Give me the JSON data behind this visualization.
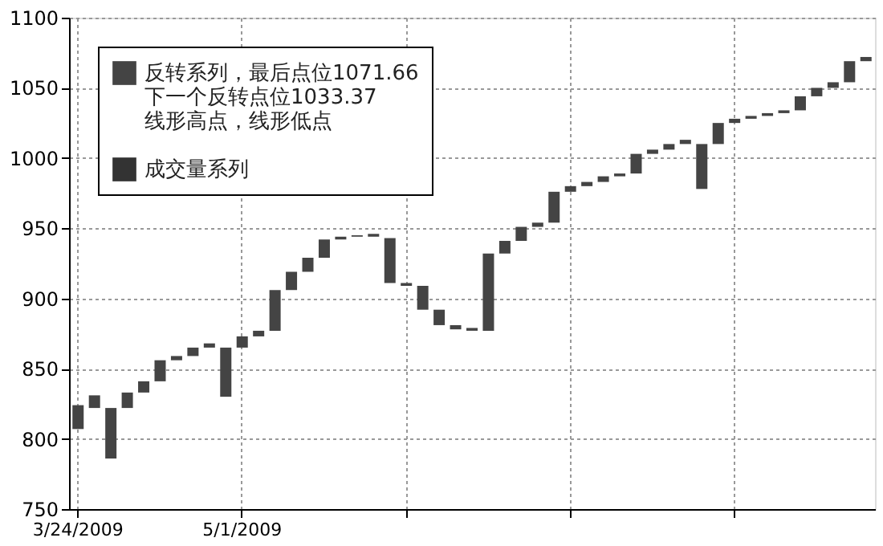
{
  "chart_data": {
    "type": "bar",
    "categories": [
      "3/24/2009",
      null,
      null,
      null,
      null,
      null,
      null,
      null,
      null,
      null,
      "5/1/2009",
      null,
      null,
      null,
      null,
      null,
      null,
      null,
      null,
      null,
      null,
      null,
      null,
      null,
      null,
      null,
      null,
      null,
      null,
      null,
      null,
      null,
      null,
      null,
      null,
      null,
      null,
      null,
      null,
      null,
      null,
      null,
      null,
      null,
      null,
      null,
      null,
      null,
      null
    ],
    "series": [
      {
        "base": [
          807,
          822,
          786,
          822,
          833,
          841,
          856,
          859,
          865,
          830,
          865,
          873,
          877,
          906,
          919,
          929,
          942,
          944,
          944,
          911,
          909,
          892,
          881,
          878,
          877,
          877,
          932,
          941,
          951,
          954,
          976,
          980,
          983,
          987,
          989,
          1003,
          1006,
          1010,
          978,
          1010,
          1025,
          1028,
          1030,
          1032,
          1034,
          1044,
          1050,
          1054,
          1069
        ],
        "name": "反转系列，最后点位1071.66\n下一个反转点位1033.37\n线形高点，线形低点",
        "color": "#444444",
        "values": [
          17,
          9,
          36,
          11,
          8,
          15,
          3,
          6,
          3,
          35,
          8,
          4,
          29,
          13,
          10,
          13,
          2,
          1,
          2,
          32,
          2,
          17,
          11,
          3,
          2,
          55,
          9,
          10,
          3,
          22,
          4,
          3,
          4,
          2,
          14,
          3,
          4,
          3,
          32,
          15,
          3,
          2,
          2,
          2,
          10,
          6,
          4,
          15,
          3
        ]
      },
      {
        "name": "成交量系列",
        "color": "#333333",
        "values": [
          null,
          null,
          null,
          null,
          null,
          null,
          null,
          null,
          null,
          null,
          null,
          null,
          null,
          null,
          null,
          null,
          null,
          null,
          null,
          null,
          null,
          null,
          null,
          null,
          null,
          null,
          null,
          null,
          null,
          null,
          null,
          null,
          null,
          null,
          null,
          null,
          null,
          null,
          null,
          null,
          null,
          null,
          null,
          null,
          null,
          null,
          null,
          null,
          null
        ]
      }
    ],
    "ylim": [
      750,
      1100
    ],
    "yticks": [
      750,
      800,
      850,
      900,
      950,
      1000,
      1050,
      1100
    ],
    "grid": true,
    "legend": "top left"
  }
}
